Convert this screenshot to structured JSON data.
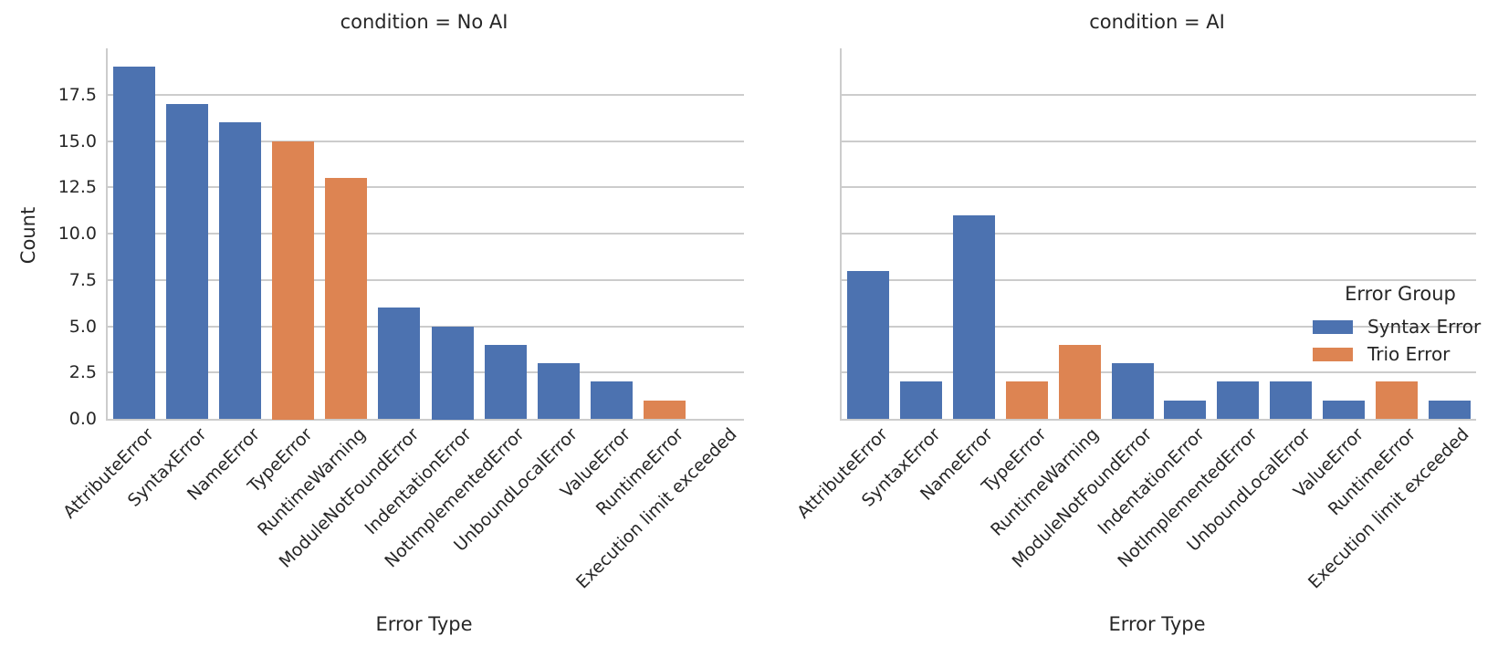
{
  "colors": {
    "syntax_error": "#4C72B0",
    "trio_error": "#DD8452",
    "grid": "#CCCCCC",
    "text": "#262626",
    "background": "#FFFFFF"
  },
  "legend": {
    "title": "Error Group",
    "items": [
      {
        "label": "Syntax Error",
        "color": "#4C72B0"
      },
      {
        "label": "Trio Error",
        "color": "#DD8452"
      }
    ]
  },
  "chart_data": [
    {
      "type": "bar",
      "title": "condition = No AI",
      "xlabel": "Error Type",
      "ylabel": "Count",
      "ylim": [
        0,
        20
      ],
      "grid": true,
      "legend_position": "right-of-second-facet",
      "categories": [
        "AttributeError",
        "SyntaxError",
        "NameError",
        "TypeError",
        "RuntimeWarning",
        "ModuleNotFoundError",
        "IndentationError",
        "NotImplementedError",
        "UnboundLocalError",
        "ValueError",
        "RuntimeError",
        "Execution limit exceeded"
      ],
      "values": [
        19,
        17,
        16,
        15,
        13,
        6,
        5,
        4,
        3,
        2,
        1,
        0
      ],
      "groups": [
        "Syntax Error",
        "Syntax Error",
        "Syntax Error",
        "Trio Error",
        "Trio Error",
        "Syntax Error",
        "Syntax Error",
        "Syntax Error",
        "Syntax Error",
        "Syntax Error",
        "Trio Error",
        "Syntax Error"
      ],
      "ytick_labels": [
        "0.0",
        "2.5",
        "5.0",
        "7.5",
        "10.0",
        "12.5",
        "15.0",
        "17.5"
      ],
      "ytick_values": [
        0,
        2.5,
        5,
        7.5,
        10,
        12.5,
        15,
        17.5
      ]
    },
    {
      "type": "bar",
      "title": "condition = AI",
      "xlabel": "Error Type",
      "ylabel": "Count",
      "ylim": [
        0,
        20
      ],
      "grid": true,
      "categories": [
        "AttributeError",
        "SyntaxError",
        "NameError",
        "TypeError",
        "RuntimeWarning",
        "ModuleNotFoundError",
        "IndentationError",
        "NotImplementedError",
        "UnboundLocalError",
        "ValueError",
        "RuntimeError",
        "Execution limit exceeded"
      ],
      "values": [
        8,
        2,
        11,
        2,
        4,
        3,
        1,
        2,
        2,
        1,
        2,
        1
      ],
      "groups": [
        "Syntax Error",
        "Syntax Error",
        "Syntax Error",
        "Trio Error",
        "Trio Error",
        "Syntax Error",
        "Syntax Error",
        "Syntax Error",
        "Syntax Error",
        "Syntax Error",
        "Trio Error",
        "Syntax Error"
      ],
      "ytick_labels": [],
      "ytick_values": [
        0,
        2.5,
        5,
        7.5,
        10,
        12.5,
        15,
        17.5
      ]
    }
  ]
}
